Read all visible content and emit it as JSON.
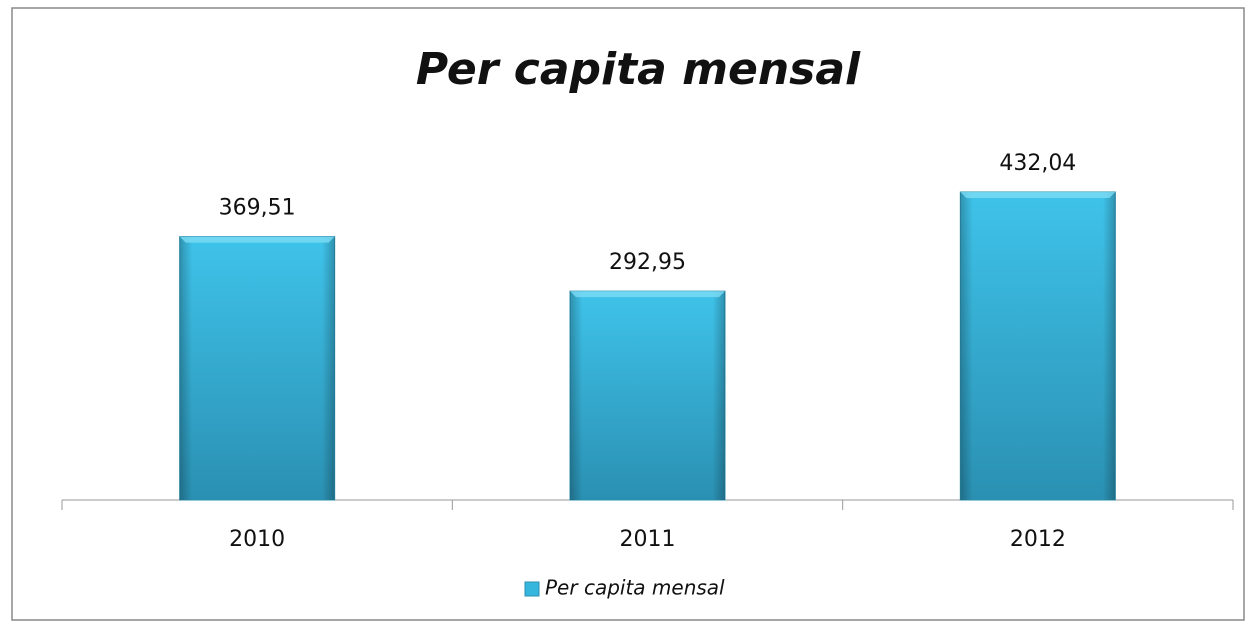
{
  "chart_data": {
    "type": "bar",
    "title": "Per capita mensal",
    "categories": [
      "2010",
      "2011",
      "2012"
    ],
    "series": [
      {
        "name": "Per capita mensal",
        "color": "#35b6dc",
        "values": [
          369.51,
          292.95,
          432.04
        ],
        "value_labels": [
          "369,51",
          "292,95",
          "432,04"
        ]
      }
    ],
    "legend": "bottom"
  }
}
